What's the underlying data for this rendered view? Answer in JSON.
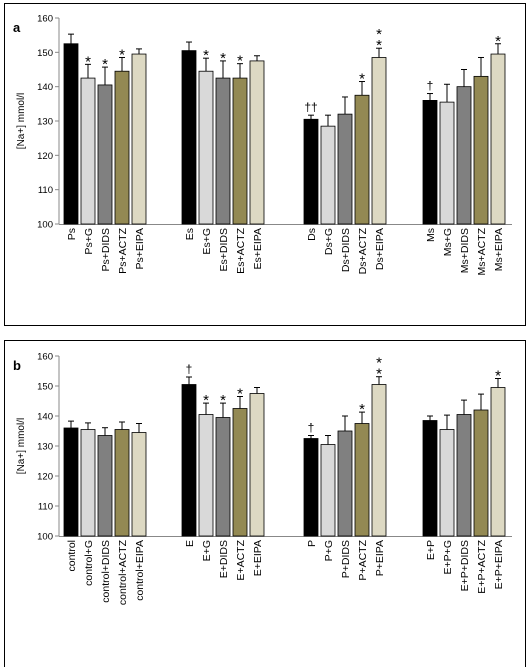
{
  "chart_data": [
    {
      "type": "bar",
      "panel_label": "a",
      "ylabel": "[Na+] mmol/l",
      "ylim": [
        100,
        160
      ],
      "yticks": [
        100,
        110,
        120,
        130,
        140,
        150,
        160
      ],
      "grid": false,
      "legend": "none",
      "groups": [
        {
          "categories": [
            "Ps",
            "Ps+G",
            "Ps+DIDS",
            "Ps+ACTZ",
            "Ps+EIPA"
          ],
          "values": [
            152.5,
            142.5,
            140.5,
            144.5,
            149.5
          ],
          "errors": [
            2.8,
            4.0,
            5.2,
            4.0,
            1.5
          ],
          "marks": [
            "",
            "*",
            "*",
            "*",
            ""
          ]
        },
        {
          "categories": [
            "Es",
            "Es+G",
            "Es+DIDS",
            "Es+ACTZ",
            "Es+EIPA"
          ],
          "values": [
            150.5,
            144.5,
            142.5,
            142.5,
            147.5
          ],
          "errors": [
            2.5,
            3.8,
            5.0,
            4.2,
            1.5
          ],
          "marks": [
            "",
            "*",
            "*",
            "*",
            ""
          ]
        },
        {
          "categories": [
            "Ds",
            "Ds+G",
            "Ds+DIDS",
            "Ds+ACTZ",
            "Ds+EIPA"
          ],
          "values": [
            130.5,
            128.5,
            132.0,
            137.5,
            148.5
          ],
          "errors": [
            1.2,
            3.2,
            5.0,
            4.0,
            2.7
          ],
          "marks": [
            "††",
            "",
            "",
            "*",
            "* *"
          ]
        },
        {
          "categories": [
            "Ms",
            "Ms+G",
            "Ms+DIDS",
            "Ms+ACTZ",
            "Ms+EIPA"
          ],
          "values": [
            136.0,
            135.5,
            140.0,
            143.0,
            149.5
          ],
          "errors": [
            2.0,
            5.2,
            5.0,
            5.5,
            3.0
          ],
          "marks": [
            "†",
            "",
            "",
            "",
            "*"
          ]
        }
      ]
    },
    {
      "type": "bar",
      "panel_label": "b",
      "ylabel": "[Na+] mmol/l",
      "ylim": [
        100,
        160
      ],
      "yticks": [
        100,
        110,
        120,
        130,
        140,
        150,
        160
      ],
      "grid": false,
      "legend": "none",
      "groups": [
        {
          "categories": [
            "control",
            "control+G",
            "control+DIDS",
            "control+ACTZ",
            "control+EIPA"
          ],
          "values": [
            136.0,
            135.5,
            133.5,
            135.5,
            134.5
          ],
          "errors": [
            2.3,
            2.2,
            2.6,
            2.5,
            3.0
          ],
          "marks": [
            "",
            "",
            "",
            "",
            ""
          ]
        },
        {
          "categories": [
            "E",
            "E+G",
            "E+DIDS",
            "E+ACTZ",
            "E+EIPA"
          ],
          "values": [
            150.5,
            140.5,
            139.5,
            142.5,
            147.5
          ],
          "errors": [
            2.5,
            3.8,
            4.8,
            4.0,
            2.0
          ],
          "marks": [
            "†",
            "*",
            "*",
            "*",
            ""
          ]
        },
        {
          "categories": [
            "P",
            "P+G",
            "P+DIDS",
            "P+ACTZ",
            "P+EIPA"
          ],
          "values": [
            132.5,
            130.5,
            135.0,
            137.5,
            150.5
          ],
          "errors": [
            1.0,
            3.0,
            5.0,
            3.8,
            2.6
          ],
          "marks": [
            "†",
            "",
            "",
            "*",
            "* *"
          ]
        },
        {
          "categories": [
            "E+P",
            "E+P+G",
            "E+P+DIDS",
            "E+P+ACTZ",
            "E+P+EIPA"
          ],
          "values": [
            138.5,
            135.5,
            140.5,
            142.0,
            149.5
          ],
          "errors": [
            1.5,
            4.8,
            4.8,
            5.3,
            3.0
          ],
          "marks": [
            "",
            "",
            "",
            "",
            "*"
          ]
        }
      ]
    }
  ],
  "colors": {
    "bar_fills": [
      "#000000",
      "#d9d9d9",
      "#808080",
      "#938953",
      "#ddd9c3"
    ],
    "frame": "#000000",
    "axis": "#888888",
    "background": "#ffffff"
  }
}
